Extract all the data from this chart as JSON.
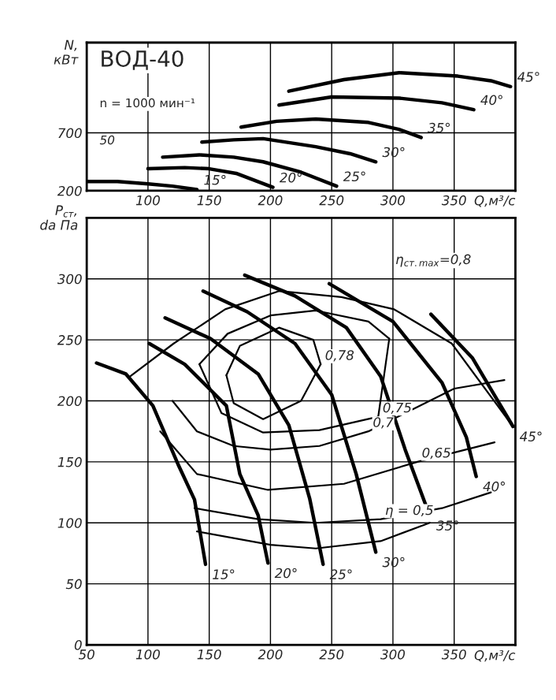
{
  "chart_data": [
    {
      "type": "line",
      "xlabel": "Q,м³/с",
      "ylabel": "N,\nкВт",
      "xlim": [
        50,
        400
      ],
      "ylim": [
        200,
        1480
      ],
      "xticks": [
        100,
        150,
        200,
        250,
        300,
        350
      ],
      "yticks": [
        200,
        700
      ],
      "grid": true,
      "legend": false,
      "annotations": [
        "ВОД-40",
        "n = 1000 мин⁻¹",
        "50"
      ],
      "series": [
        {
          "name": "15°",
          "color": "#000000",
          "x": [
            50,
            75,
            100,
            120,
            140
          ],
          "values": [
            280,
            280,
            260,
            240,
            210
          ]
        },
        {
          "name": "20°",
          "color": "#000000",
          "x": [
            100,
            130,
            150,
            172,
            202
          ],
          "values": [
            390,
            400,
            390,
            350,
            230
          ]
        },
        {
          "name": "25°",
          "color": "#000000",
          "x": [
            112,
            142,
            170,
            194,
            225,
            254
          ],
          "values": [
            490,
            510,
            490,
            450,
            360,
            240
          ]
        },
        {
          "name": "30°",
          "color": "#000000",
          "x": [
            144,
            170,
            194,
            237,
            265,
            286
          ],
          "values": [
            620,
            640,
            650,
            580,
            520,
            450
          ]
        },
        {
          "name": "35°",
          "color": "#000000",
          "x": [
            176,
            205,
            237,
            280,
            305,
            323
          ],
          "values": [
            750,
            800,
            820,
            790,
            730,
            660
          ]
        },
        {
          "name": "40°",
          "color": "#000000",
          "x": [
            207,
            250,
            305,
            340,
            366
          ],
          "values": [
            940,
            1010,
            1000,
            960,
            900
          ]
        },
        {
          "name": "45°",
          "color": "#000000",
          "x": [
            215,
            260,
            305,
            353,
            380,
            396
          ],
          "values": [
            1060,
            1160,
            1220,
            1190,
            1150,
            1100
          ]
        }
      ]
    },
    {
      "type": "line",
      "xlabel": "Q,м³/с",
      "ylabel": "P$_{ст}$,\nda Па",
      "xlim": [
        50,
        400
      ],
      "ylim": [
        0,
        350
      ],
      "xticks": [
        50,
        100,
        150,
        200,
        250,
        300,
        350
      ],
      "yticks": [
        0,
        50,
        100,
        150,
        200,
        250,
        300
      ],
      "grid": true,
      "legend": false,
      "annotations": [
        "η$_{ст.max}$=0,8",
        {
          "text": "0,78",
          "x": 241,
          "y": 230
        },
        {
          "text": "0,75",
          "x": 288,
          "y": 187
        },
        {
          "text": "0,7",
          "x": 280,
          "y": 175
        },
        {
          "text": "0,65",
          "x": 320,
          "y": 150
        },
        {
          "text": "η = 0,5",
          "x": 290,
          "y": 103
        }
      ],
      "series": [
        {
          "name": "15°",
          "color": "#000000",
          "x": [
            58,
            82,
            104,
            125,
            138,
            147
          ],
          "values": [
            231,
            222,
            196,
            147,
            119,
            66
          ]
        },
        {
          "name": "20°",
          "color": "#000000",
          "x": [
            101,
            130,
            164,
            175,
            190,
            198
          ],
          "values": [
            247,
            230,
            196,
            140,
            106,
            67
          ]
        },
        {
          "name": "25°",
          "color": "#000000",
          "x": [
            114,
            151,
            190,
            215,
            232,
            243
          ],
          "values": [
            268,
            251,
            222,
            180,
            120,
            66
          ]
        },
        {
          "name": "30°",
          "color": "#000000",
          "x": [
            145,
            181,
            220,
            250,
            270,
            286
          ],
          "values": [
            290,
            273,
            247,
            205,
            140,
            76
          ]
        },
        {
          "name": "35°",
          "color": "#000000",
          "x": [
            179,
            220,
            262,
            290,
            310,
            330
          ],
          "values": [
            303,
            286,
            260,
            220,
            160,
            106
          ]
        },
        {
          "name": "40°",
          "color": "#000000",
          "x": [
            248,
            300,
            340,
            360,
            368
          ],
          "values": [
            296,
            265,
            215,
            170,
            138
          ]
        },
        {
          "name": "45°",
          "color": "#000000",
          "x": [
            331,
            365,
            398
          ],
          "values": [
            271,
            235,
            179
          ]
        },
        {
          "color": "#000000",
          "x": [
            84,
            121,
            163,
            207,
            258,
            301,
            348,
            398
          ],
          "values": [
            219,
            247,
            275,
            290,
            285,
            275,
            247,
            179
          ]
        },
        {
          "color": "#000000",
          "x": [
            164,
            175,
            207,
            235,
            241
          ],
          "values": [
            221,
            245,
            260,
            250,
            230
          ]
        },
        {
          "color": "#000000",
          "x": [
            164,
            170,
            194,
            225,
            241
          ],
          "values": [
            221,
            198,
            185,
            200,
            230
          ]
        },
        {
          "color": "#000000",
          "x": [
            142,
            165,
            200,
            237,
            280,
            297
          ],
          "values": [
            230,
            255,
            270,
            274,
            265,
            251
          ]
        },
        {
          "color": "#000000",
          "x": [
            142,
            160,
            194,
            240,
            288,
            297
          ],
          "values": [
            230,
            190,
            174,
            176,
            187,
            251
          ]
        },
        {
          "color": "#000000",
          "x": [
            120,
            140,
            170,
            200,
            240,
            280,
            320,
            350,
            391
          ],
          "values": [
            200,
            175,
            163,
            160,
            163,
            175,
            195,
            210,
            217
          ]
        },
        {
          "color": "#000000",
          "x": [
            110,
            140,
            198,
            260,
            320,
            383
          ],
          "values": [
            175,
            140,
            127,
            132,
            150,
            166
          ]
        },
        {
          "color": "#000000",
          "x": [
            138,
            190,
            237,
            290,
            340,
            380
          ],
          "values": [
            112,
            103,
            100,
            103,
            112,
            125
          ]
        },
        {
          "color": "#000000",
          "x": [
            140,
            200,
            237,
            290,
            330
          ],
          "values": [
            93,
            82,
            79,
            85,
            100
          ]
        }
      ]
    }
  ]
}
